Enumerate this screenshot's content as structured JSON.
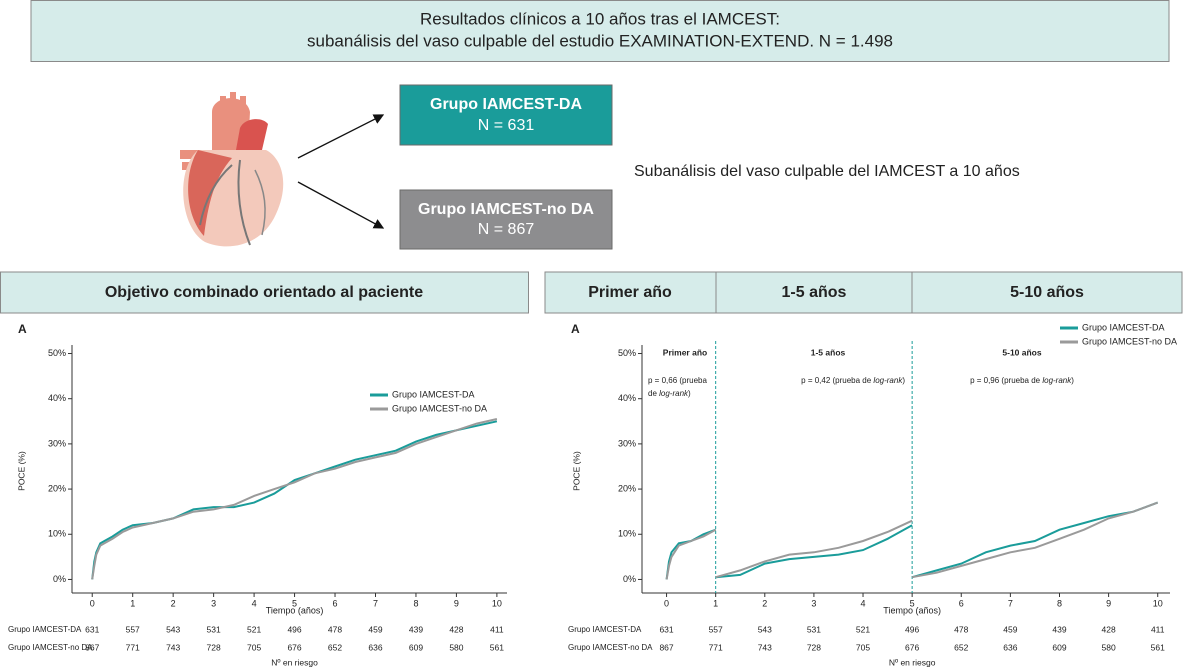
{
  "header": {
    "title_lines": [
      "Resultados clínicos a 10 años tras el IAMCEST:",
      "subanálisis del vaso culpable del estudio EXAMINATION-EXTEND. N = 1.498"
    ]
  },
  "groups": [
    {
      "name": "Grupo IAMCEST-DA",
      "n": "N = 631"
    },
    {
      "name": "Grupo IAMCEST-no DA",
      "n": "N = 867"
    }
  ],
  "subtitle": "Subanálisis del vaso culpable del IAMCEST a 10 años",
  "panels": {
    "left": "Objetivo combinado orientado al paciente",
    "right": [
      "Primer año",
      "1-5 años",
      "5-10 años"
    ]
  },
  "chart_data": [
    {
      "type": "line",
      "panel": "A",
      "ylabel": "POCE (%)",
      "xlabel": "Tiempo (años)",
      "xlim": [
        -0.5,
        10.25
      ],
      "ylim": [
        -3,
        51
      ],
      "xticks": [
        0,
        1,
        2,
        3,
        4,
        5,
        6,
        7,
        8,
        9,
        10
      ],
      "yticks": [
        {
          "value": 0,
          "label": "0%"
        },
        {
          "value": 10,
          "label": "10%"
        },
        {
          "value": 20,
          "label": "20%"
        },
        {
          "value": 30,
          "label": "30%"
        },
        {
          "value": 40,
          "label": "40%"
        },
        {
          "value": 50,
          "label": "50%"
        }
      ],
      "legend": "upper right",
      "series": [
        {
          "name": "Grupo IAMCEST-DA",
          "color": "#1a9c9a",
          "x": [
            0,
            0.05,
            0.1,
            0.2,
            0.3,
            0.5,
            0.75,
            1,
            1.5,
            2,
            2.5,
            3,
            3.5,
            4,
            4.5,
            5,
            5.5,
            6,
            6.5,
            7,
            7.5,
            8,
            8.5,
            9,
            9.5,
            10
          ],
          "values": [
            0,
            4,
            6,
            8,
            8.5,
            9.5,
            11,
            12,
            12.5,
            13.5,
            15.5,
            16,
            16,
            17,
            19,
            22,
            23.5,
            25,
            26.5,
            27.5,
            28.5,
            30.5,
            32,
            33,
            34,
            35
          ]
        },
        {
          "name": "Grupo IAMCEST-no DA",
          "color": "#9a9a9a",
          "x": [
            0,
            0.05,
            0.1,
            0.2,
            0.3,
            0.5,
            0.75,
            1,
            1.5,
            2,
            2.5,
            3,
            3.5,
            4,
            4.5,
            5,
            5.5,
            6,
            6.5,
            7,
            7.5,
            8,
            8.5,
            9,
            9.5,
            10
          ],
          "values": [
            0,
            3,
            5.5,
            7.5,
            8,
            9,
            10.5,
            11.5,
            12.5,
            13.5,
            15,
            15.5,
            16.5,
            18.5,
            20,
            21.5,
            23.5,
            24.5,
            26,
            27,
            28,
            30,
            31.5,
            33,
            34.5,
            35.5
          ]
        }
      ],
      "risk_table": {
        "title": "Nº en riesgo",
        "rows": [
          {
            "name": "Grupo IAMCEST-DA",
            "values": [
              631,
              557,
              543,
              531,
              521,
              496,
              478,
              459,
              439,
              428,
              411
            ]
          },
          {
            "name": "Grupo IAMCEST-no DA",
            "values": [
              867,
              771,
              743,
              728,
              705,
              676,
              652,
              636,
              609,
              580,
              561
            ]
          }
        ]
      }
    },
    {
      "type": "line",
      "panel": "A",
      "ylabel": "POCE (%)",
      "xlabel": "Tiempo (años)",
      "xlim": [
        -0.5,
        10.25
      ],
      "ylim": [
        -3,
        51
      ],
      "xticks": [
        0,
        1,
        2,
        3,
        4,
        5,
        6,
        7,
        8,
        9,
        10
      ],
      "yticks": [
        {
          "value": 0,
          "label": "0%"
        },
        {
          "value": 10,
          "label": "10%"
        },
        {
          "value": 20,
          "label": "20%"
        },
        {
          "value": 30,
          "label": "30%"
        },
        {
          "value": 40,
          "label": "40%"
        },
        {
          "value": 50,
          "label": "50%"
        }
      ],
      "legend": "upper right",
      "dividers": [
        1,
        5
      ],
      "sections": [
        {
          "label": "Primer año",
          "p_lines": [
            [
              {
                "text": "p = 0,66 (prueba"
              }
            ],
            [
              {
                "text": "de "
              },
              {
                "text": "log-rank",
                "italic": true
              },
              {
                "text": ")"
              }
            ]
          ]
        },
        {
          "label": "1-5 años",
          "p_lines": [
            [
              {
                "text": "p = 0,42 (prueba de "
              },
              {
                "text": "log-rank",
                "italic": true
              },
              {
                "text": ")"
              }
            ]
          ]
        },
        {
          "label": "5-10 años",
          "p_lines": [
            [
              {
                "text": "p = 0,96 (prueba de "
              },
              {
                "text": "log-rank",
                "italic": true
              },
              {
                "text": ")"
              }
            ]
          ]
        }
      ],
      "series": [
        {
          "name": "Grupo IAMCEST-DA",
          "color": "#1a9c9a",
          "x": [
            0,
            0.05,
            0.1,
            0.25,
            0.5,
            0.75,
            1,
            1,
            1,
            1.5,
            2,
            2.5,
            3,
            3.5,
            4,
            4.5,
            5,
            5,
            5,
            5.5,
            6,
            6.5,
            7,
            7.5,
            8,
            8.5,
            9,
            9.5,
            10
          ],
          "values": [
            0,
            4,
            6,
            8,
            8.5,
            10,
            11,
            null,
            0.5,
            1,
            3.5,
            4.5,
            5,
            5.5,
            6.5,
            9,
            12,
            null,
            0.5,
            2,
            3.5,
            6,
            7.5,
            8.5,
            11,
            12.5,
            14,
            15,
            17
          ]
        },
        {
          "name": "Grupo IAMCEST-no DA",
          "color": "#9a9a9a",
          "x": [
            0,
            0.05,
            0.1,
            0.25,
            0.5,
            0.75,
            1,
            1,
            1,
            1.5,
            2,
            2.5,
            3,
            3.5,
            4,
            4.5,
            5,
            5,
            5,
            5.5,
            6,
            6.5,
            7,
            7.5,
            8,
            8.5,
            9,
            9.5,
            10
          ],
          "values": [
            0,
            3,
            5,
            7.5,
            8.5,
            9.5,
            11,
            null,
            0.5,
            2,
            4,
            5.5,
            6,
            7,
            8.5,
            10.5,
            13,
            null,
            0.5,
            1.5,
            3,
            4.5,
            6,
            7,
            9,
            11,
            13.5,
            15,
            17
          ]
        }
      ],
      "risk_table": {
        "title": "Nº en riesgo",
        "rows": [
          {
            "name": "Grupo IAMCEST-DA",
            "values": [
              631,
              557,
              543,
              531,
              521,
              496,
              478,
              459,
              439,
              428,
              411
            ]
          },
          {
            "name": "Grupo IAMCEST-no DA",
            "values": [
              867,
              771,
              743,
              728,
              705,
              676,
              652,
              636,
              609,
              580,
              561
            ]
          }
        ]
      }
    }
  ]
}
